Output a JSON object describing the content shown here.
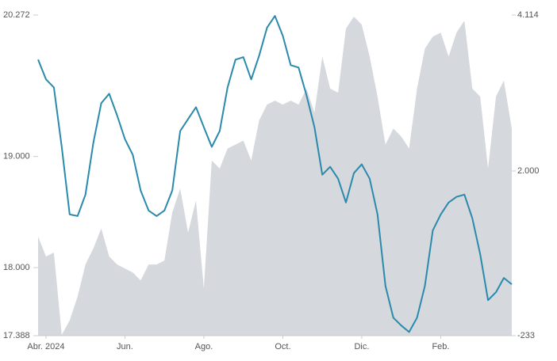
{
  "chart_data": {
    "type": "line",
    "categories": [
      null,
      "Abr. 2024",
      null,
      null,
      null,
      null,
      null,
      null,
      null,
      null,
      null,
      "Jun.",
      null,
      null,
      null,
      null,
      null,
      null,
      null,
      null,
      null,
      "Ago.",
      null,
      null,
      null,
      null,
      null,
      null,
      null,
      null,
      null,
      "Oct.",
      null,
      null,
      null,
      null,
      null,
      null,
      null,
      null,
      null,
      "Dic.",
      null,
      null,
      null,
      null,
      null,
      null,
      null,
      null,
      null,
      "Feb.",
      null,
      null,
      null,
      null,
      null,
      null,
      null,
      null,
      null
    ],
    "series": [
      {
        "color": "#2a8aab",
        "values": [
          19871,
          19693,
          19621,
          19086,
          18479,
          18464,
          18657,
          19121,
          19479,
          19564,
          19371,
          19157,
          19014,
          18693,
          18514,
          18464,
          18514,
          18693,
          19229,
          19336,
          19443,
          19264,
          19086,
          19229,
          19621,
          19871,
          19893,
          19693,
          19907,
          20157,
          20264,
          20086,
          19821,
          19800,
          19550,
          19264,
          18836,
          18907,
          18800,
          18586,
          18850,
          18929,
          18800,
          18479,
          17836,
          17550,
          17479,
          17421,
          17550,
          17836,
          18336,
          18479,
          18586,
          18636,
          18657,
          18443,
          18121,
          17707,
          17779,
          17907,
          17850
        ]
      },
      {
        "type": "area",
        "axis": "y2",
        "color": "#d5d8dd",
        "values": [
          1111,
          840,
          894,
          -222,
          -27,
          298,
          732,
          949,
          1220,
          840,
          732,
          678,
          623,
          515,
          732,
          732,
          786,
          1436,
          1762,
          1165,
          1599,
          407,
          2141,
          2033,
          2304,
          2358,
          2412,
          2141,
          2683,
          2900,
          2954,
          2900,
          2954,
          2900,
          3117,
          2791,
          3550,
          3117,
          3062,
          3930,
          4092,
          3984,
          3550,
          3008,
          2358,
          2575,
          2466,
          2304,
          3117,
          3659,
          3821,
          3875,
          3550,
          3875,
          4038,
          3117,
          3008,
          2033,
          3008,
          3225,
          2575
        ]
      }
    ],
    "ylim": [
      17388,
      20272
    ],
    "yticks": [
      {
        "value": 17388,
        "label": "17.388"
      },
      {
        "value": 18000,
        "label": "18.000"
      },
      {
        "value": 19000,
        "label": "19.000"
      },
      {
        "value": 20272,
        "label": "20.272"
      }
    ],
    "y2lim": [
      -233,
      4114
    ],
    "y2ticks": [
      -233,
      {
        "value": 2000,
        "label": "2.000"
      },
      {
        "value": 4114,
        "label": "4.114"
      }
    ]
  }
}
